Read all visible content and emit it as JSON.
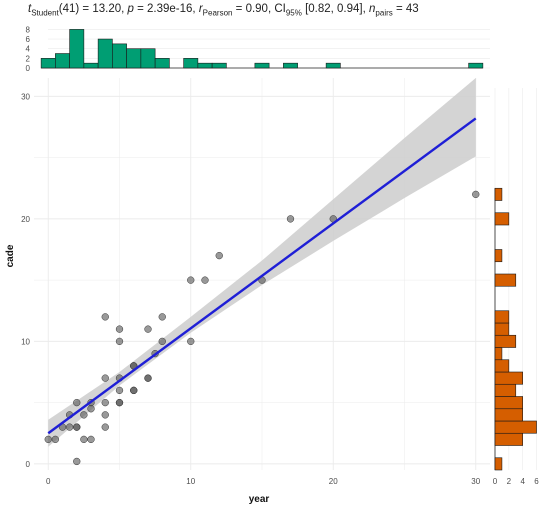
{
  "stats": {
    "t_label": "t",
    "t_sub": "Student",
    "t_rest": "(41) = 13.20, ",
    "p_label": "p",
    "p_rest": " = 2.39e-16, ",
    "r_label": "r",
    "r_sub": "Pearson",
    "r_rest": " = 0.90, CI",
    "ci_sub": "95%",
    "ci_rest": " [0.82, 0.94], ",
    "n_label": "n",
    "n_sub": "pairs",
    "n_rest": " = 43"
  },
  "colors": {
    "top_hist_fill": "#009e73",
    "right_hist_fill": "#d55e00",
    "points": "#555555",
    "fit_line": "#1f1fd6",
    "ci_band": "#cccccc",
    "grid": "#ebebeb"
  },
  "chart_data": {
    "type": "scatter",
    "xlabel": "year",
    "ylabel": "cade",
    "xlim": [
      -1,
      31
    ],
    "ylim": [
      -0.5,
      31.5
    ],
    "x_ticks": [
      0,
      10,
      20,
      30
    ],
    "y_ticks": [
      0,
      10,
      20,
      30
    ],
    "grid": true,
    "points": [
      [
        0,
        2
      ],
      [
        0.5,
        2
      ],
      [
        1,
        3
      ],
      [
        1.5,
        3
      ],
      [
        1.5,
        4
      ],
      [
        2,
        3
      ],
      [
        2,
        3
      ],
      [
        2,
        5
      ],
      [
        2,
        0.2
      ],
      [
        2.5,
        2
      ],
      [
        2.5,
        4
      ],
      [
        3,
        2
      ],
      [
        3,
        4.5
      ],
      [
        4,
        3
      ],
      [
        4,
        4
      ],
      [
        4,
        5
      ],
      [
        4,
        7
      ],
      [
        4,
        12
      ],
      [
        5,
        5
      ],
      [
        5,
        5
      ],
      [
        5,
        6
      ],
      [
        5,
        7
      ],
      [
        5,
        10
      ],
      [
        5,
        11
      ],
      [
        6,
        6
      ],
      [
        6,
        8
      ],
      [
        6,
        8
      ],
      [
        7,
        7
      ],
      [
        7,
        11
      ],
      [
        7.5,
        9
      ],
      [
        8,
        10
      ],
      [
        8,
        12
      ],
      [
        10,
        10
      ],
      [
        10,
        15
      ],
      [
        11,
        15
      ],
      [
        12,
        17
      ],
      [
        15,
        15
      ],
      [
        17,
        20
      ],
      [
        20,
        20
      ],
      [
        30,
        22
      ],
      [
        6,
        6
      ],
      [
        3,
        5
      ],
      [
        7,
        7
      ]
    ],
    "fit": {
      "x0": 0,
      "y0": 2.5,
      "x1": 30,
      "y1": 28.2
    },
    "ci_band": [
      {
        "x": 0,
        "lo": 1.4,
        "hi": 3.6
      },
      {
        "x": 5,
        "lo": 6.4,
        "hi": 7.5
      },
      {
        "x": 10,
        "lo": 10.7,
        "hi": 12.0
      },
      {
        "x": 15,
        "lo": 14.6,
        "hi": 16.6
      },
      {
        "x": 20,
        "lo": 18.2,
        "hi": 21.6
      },
      {
        "x": 25,
        "lo": 21.7,
        "hi": 26.6
      },
      {
        "x": 30,
        "lo": 25.1,
        "hi": 31.5
      }
    ],
    "x_marginal": {
      "y_ticks": [
        0,
        2,
        4,
        6,
        8
      ],
      "ylim": [
        0,
        8.5
      ],
      "bins": [
        {
          "x0": -0.5,
          "x1": 0.5,
          "count": 2
        },
        {
          "x0": 0.5,
          "x1": 1.5,
          "count": 3
        },
        {
          "x0": 1.5,
          "x1": 2.5,
          "count": 8
        },
        {
          "x0": 2.5,
          "x1": 3.5,
          "count": 1
        },
        {
          "x0": 3.5,
          "x1": 4.5,
          "count": 6
        },
        {
          "x0": 4.5,
          "x1": 5.5,
          "count": 5
        },
        {
          "x0": 5.5,
          "x1": 6.5,
          "count": 4
        },
        {
          "x0": 6.5,
          "x1": 7.5,
          "count": 4
        },
        {
          "x0": 7.5,
          "x1": 8.5,
          "count": 2
        },
        {
          "x0": 9.5,
          "x1": 10.5,
          "count": 2
        },
        {
          "x0": 10.5,
          "x1": 11.5,
          "count": 1
        },
        {
          "x0": 11.5,
          "x1": 12.5,
          "count": 1
        },
        {
          "x0": 14.5,
          "x1": 15.5,
          "count": 1
        },
        {
          "x0": 16.5,
          "x1": 17.5,
          "count": 1
        },
        {
          "x0": 19.5,
          "x1": 20.5,
          "count": 1
        },
        {
          "x0": 29.5,
          "x1": 30.5,
          "count": 1
        }
      ]
    },
    "y_marginal": {
      "x_ticks": [
        0,
        2,
        4,
        6
      ],
      "xlim": [
        0,
        6.5
      ],
      "bins": [
        {
          "y0": -0.5,
          "y1": 0.5,
          "count": 1
        },
        {
          "y0": 1.5,
          "y1": 2.5,
          "count": 4
        },
        {
          "y0": 2.5,
          "y1": 3.5,
          "count": 6
        },
        {
          "y0": 3.5,
          "y1": 4.5,
          "count": 4
        },
        {
          "y0": 4.5,
          "y1": 5.5,
          "count": 4
        },
        {
          "y0": 5.5,
          "y1": 6.5,
          "count": 3
        },
        {
          "y0": 6.5,
          "y1": 7.5,
          "count": 4
        },
        {
          "y0": 7.5,
          "y1": 8.5,
          "count": 2
        },
        {
          "y0": 8.5,
          "y1": 9.5,
          "count": 1
        },
        {
          "y0": 9.5,
          "y1": 10.5,
          "count": 3
        },
        {
          "y0": 10.5,
          "y1": 11.5,
          "count": 2
        },
        {
          "y0": 11.5,
          "y1": 12.5,
          "count": 2
        },
        {
          "y0": 14.5,
          "y1": 15.5,
          "count": 3
        },
        {
          "y0": 16.5,
          "y1": 17.5,
          "count": 1
        },
        {
          "y0": 19.5,
          "y1": 20.5,
          "count": 2
        },
        {
          "y0": 21.5,
          "y1": 22.5,
          "count": 1
        }
      ]
    }
  }
}
